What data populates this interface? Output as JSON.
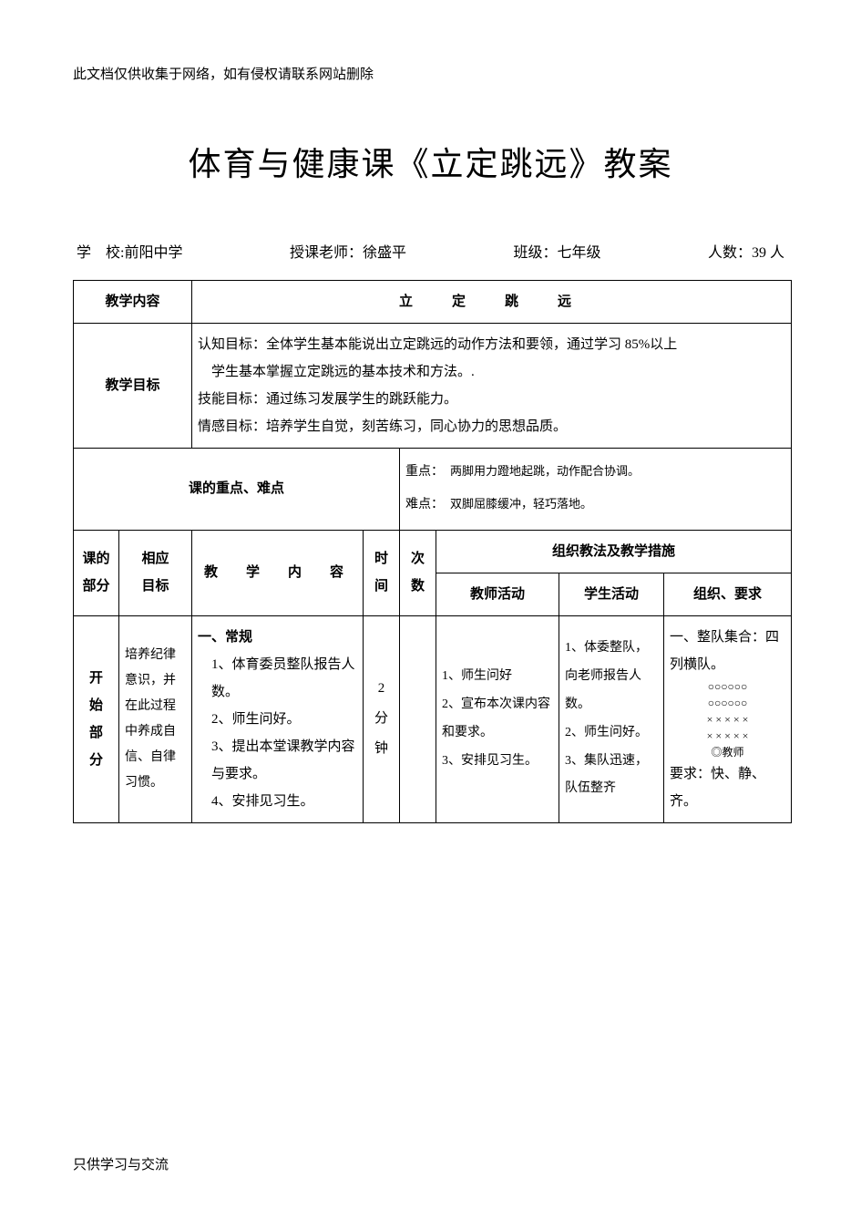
{
  "colors": {
    "text": "#000000",
    "border": "#000000",
    "background": "#ffffff"
  },
  "disclaimer": "此文档仅供收集于网络，如有侵权请联系网站删除",
  "title": "体育与健康课《立定跳远》教案",
  "info": {
    "school_label": "学　校:",
    "school_value": "前阳中学",
    "teacher_label": "授课老师：",
    "teacher_value": "徐盛平",
    "class_label": "班级：",
    "class_value": "七年级",
    "count_label": "人数：",
    "count_value": "39 人"
  },
  "headers": {
    "teach_content": "教学内容",
    "subject": "立　定　跳　远",
    "teach_goals": "教学目标",
    "key_difficult": "课的重点、难点",
    "part": "课的\n部分",
    "related_goal": "相应\n目标",
    "content": "教　学　内　容",
    "time": "时\n间",
    "count": "次\n数",
    "methods": "组织教法及教学措施",
    "teacher_act": "教师活动",
    "student_act": "学生活动",
    "org_req": "组织、要求"
  },
  "goals": {
    "cognitive": "认知目标：全体学生基本能说出立定跳远的动作方法和要领，通过学习 85%以上",
    "cognitive_line2": "学生基本掌握立定跳远的基本技术和方法。.",
    "skill": "技能目标：通过练习发展学生的跳跃能力。",
    "emotion": "情感目标：培养学生自觉，刻苦练习，同心协力的思想品质。"
  },
  "keypoints": {
    "key_label": "重点：",
    "key_text": "两脚用力蹬地起跳，动作配合协调。",
    "diff_label": "难点：",
    "diff_text": "双脚屈膝缓冲，轻巧落地。"
  },
  "section_start": {
    "part_name": "开\n始\n部\n分",
    "goal_text": "培养纪律意识，并在此过程中养成自信、自律习惯。",
    "content_header": "一、常规",
    "content_items": "1、体育委员整队报告人数。\n2、师生问好。\n3、提出本堂课教学内容与要求。\n4、安排见习生。",
    "time": "2\n分\n钟",
    "count": "",
    "teacher": "1、师生问好\n2、宣布本次课内容和要求。\n3、安排见习生。",
    "student": "1、体委整队，向老师报告人数。\n2、师生问好。\n3、集队迅速，队伍整齐",
    "org_header": "一、整队集合：四列横队。",
    "formation_rows": [
      "○○○○○○",
      "○○○○○○",
      "× × × × ×",
      "× × × × ×",
      "◎教师"
    ],
    "org_req": "要求：快、静、齐。"
  },
  "footer": "只供学习与交流"
}
